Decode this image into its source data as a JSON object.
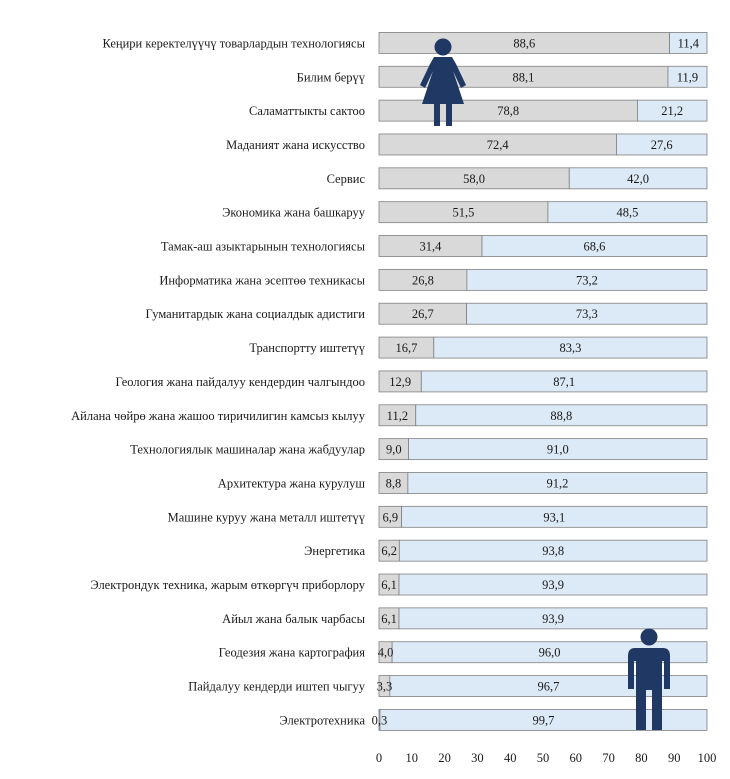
{
  "chart_data": {
    "type": "bar",
    "stacked": true,
    "orientation": "horizontal",
    "title": "",
    "xlabel": "",
    "ylabel": "",
    "xlim": [
      0,
      100
    ],
    "x_ticks": [
      0,
      10,
      20,
      30,
      40,
      50,
      60,
      70,
      80,
      90,
      100
    ],
    "grid": false,
    "legend": "none",
    "categories": [
      "Кеңири керектелүүчү товарлардын технологиясы",
      "Билим берүү",
      "Саламаттыкты сактоо",
      "Маданият жана искусство",
      "Сервис",
      "Экономика жана башкаруу",
      "Тамак-аш азыктарынын технологиясы",
      "Информатика жана эсептөө техникасы",
      "Гуманитардык жана социалдык адистиги",
      "Транспортту иштетүү",
      "Геология жана пайдалуу кендердин чалгындоо",
      "Айлана чөйрө жана жашоо тиричилигин камсыз кылуу",
      "Технологиялык машиналар жана жабдуулар",
      "Архитектура жана курулуш",
      "Машине куруу жана металл иштетүү",
      "Энергетика",
      "Электрондук техника, жарым өткөргүч приборлору",
      "Айыл жана балык чарбасы",
      "Геодезия жана картография",
      "Пайдалуу кендерди иштеп чыгуу",
      "Электротехника"
    ],
    "series": [
      {
        "name": "",
        "color": "#d9d9d9",
        "values": [
          88.6,
          88.1,
          78.8,
          72.4,
          58.0,
          51.5,
          31.4,
          26.8,
          26.7,
          16.7,
          12.9,
          11.2,
          9.0,
          8.8,
          6.9,
          6.2,
          6.1,
          6.1,
          4.0,
          3.3,
          0.3
        ],
        "labels": [
          "88,6",
          "88,1",
          "78,8",
          "72,4",
          "58,0",
          "51,5",
          "31,4",
          "26,8",
          "26,7",
          "16,7",
          "12,9",
          "11,2",
          "9,0",
          "8,8",
          "6,9",
          "6,2",
          "6,1",
          "6,1",
          "4,0",
          "3,3",
          "0,3"
        ]
      },
      {
        "name": "",
        "color": "#dce9f6",
        "values": [
          11.4,
          11.9,
          21.2,
          27.6,
          42.0,
          48.5,
          68.6,
          73.2,
          73.3,
          83.3,
          87.1,
          88.8,
          91.0,
          91.2,
          93.1,
          93.8,
          93.9,
          93.9,
          96.0,
          96.7,
          99.7
        ],
        "labels": [
          "11,4",
          "11,9",
          "21,2",
          "27,6",
          "42,0",
          "48,5",
          "68,6",
          "73,2",
          "73,3",
          "83,3",
          "87,1",
          "88,8",
          "91,0",
          "91,2",
          "93,1",
          "93,8",
          "93,9",
          "93,9",
          "96,0",
          "96,7",
          "99,7"
        ]
      }
    ]
  },
  "icons": {
    "female": "female-figure-icon",
    "male": "male-figure-icon",
    "color": "#1f3864"
  },
  "colors": {
    "bar_outline": "#808080"
  }
}
